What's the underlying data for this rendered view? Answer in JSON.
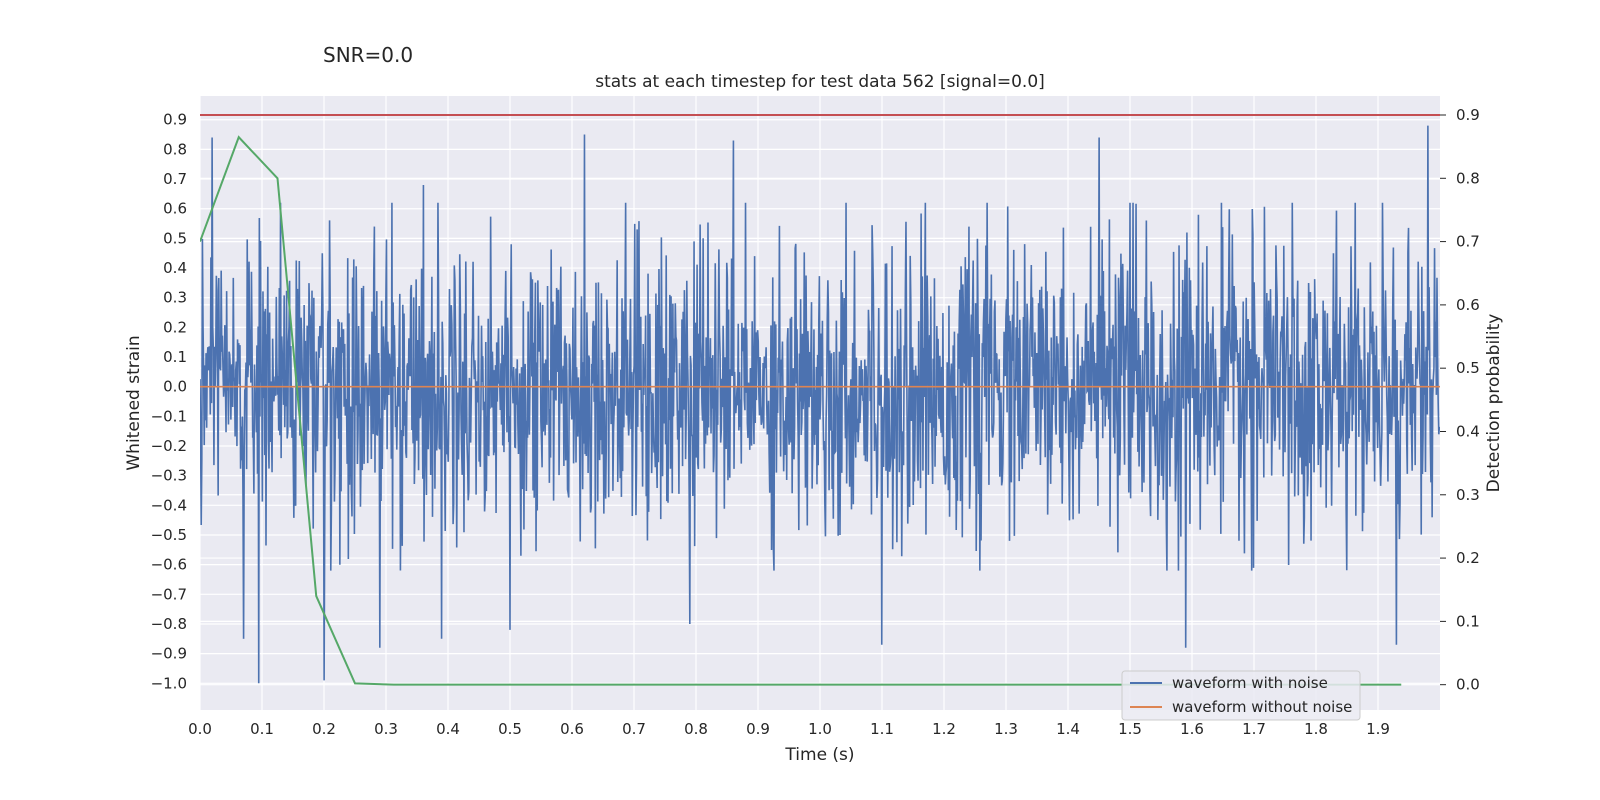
{
  "chart_data": {
    "type": "line",
    "suptitle": "SNR=0.0",
    "title": "stats at each timestep for test data 562 [signal=0.0]",
    "xlabel": "Time (s)",
    "ylabel_left": "Whitened strain",
    "ylabel_right": "Detection probability",
    "xlim": [
      0.0,
      2.0
    ],
    "ylim_left": [
      -1.09,
      0.98
    ],
    "ylim_right": [
      -0.04,
      0.93
    ],
    "x_ticks": [
      "0.0",
      "0.1",
      "0.2",
      "0.3",
      "0.4",
      "0.5",
      "0.6",
      "0.7",
      "0.8",
      "0.9",
      "1.0",
      "1.1",
      "1.2",
      "1.3",
      "1.4",
      "1.5",
      "1.6",
      "1.7",
      "1.8",
      "1.9"
    ],
    "y_left_ticks": [
      "0.9",
      "0.8",
      "0.7",
      "0.6",
      "0.5",
      "0.4",
      "0.3",
      "0.2",
      "0.1",
      "0.0",
      "−0.1",
      "−0.2",
      "−0.3",
      "−0.4",
      "−0.5",
      "−0.6",
      "−0.7",
      "−0.8",
      "−0.9",
      "−1.0"
    ],
    "y_right_ticks": [
      "0.9",
      "0.8",
      "0.7",
      "0.6",
      "0.5",
      "0.4",
      "0.3",
      "0.2",
      "0.1",
      "0.0"
    ],
    "grid": true,
    "legend_position": "lower-right",
    "colors": {
      "noisy": "#4c72b0",
      "clean": "#dd8452",
      "probability": "#55a868",
      "threshold": "#c44e52",
      "plot_bg": "#eaeaf2",
      "grid": "#ffffff"
    },
    "series": [
      {
        "name": "waveform with noise",
        "axis": "left",
        "description": "dense noise trace, approx. 2048 samples, values mostly in [-0.5, 0.5]",
        "sample_rate": 1024,
        "seed": 562,
        "std": 0.24,
        "peaks": [
          {
            "x": 0.02,
            "y": 0.84
          },
          {
            "x": 0.07,
            "y": -0.85
          },
          {
            "x": 0.095,
            "y": -1.0
          },
          {
            "x": 0.13,
            "y": 0.62
          },
          {
            "x": 0.2,
            "y": -0.99
          },
          {
            "x": 0.29,
            "y": -0.88
          },
          {
            "x": 0.36,
            "y": 0.68
          },
          {
            "x": 0.39,
            "y": -0.85
          },
          {
            "x": 0.5,
            "y": -0.82
          },
          {
            "x": 0.62,
            "y": 0.85
          },
          {
            "x": 0.79,
            "y": -0.8
          },
          {
            "x": 0.86,
            "y": 0.83
          },
          {
            "x": 1.1,
            "y": -0.87
          },
          {
            "x": 1.45,
            "y": 0.84
          },
          {
            "x": 1.59,
            "y": -0.88
          },
          {
            "x": 1.98,
            "y": 0.88
          },
          {
            "x": 1.93,
            "y": -0.87
          }
        ]
      },
      {
        "name": "waveform without noise",
        "axis": "left",
        "x": [
          0.0,
          2.0
        ],
        "y": [
          0.0,
          0.0
        ]
      },
      {
        "name": "",
        "axis": "right",
        "x": [
          0.0,
          0.0625,
          0.125,
          0.1875,
          0.25,
          0.3125,
          0.5,
          1.0,
          1.5,
          1.9375
        ],
        "y": [
          0.7,
          0.865,
          0.8,
          0.14,
          0.002,
          0.0,
          0.0,
          0.0,
          0.0,
          0.0
        ]
      },
      {
        "name": "",
        "axis": "right",
        "x": [
          0.0,
          2.0
        ],
        "y": [
          0.9,
          0.9
        ]
      }
    ]
  }
}
